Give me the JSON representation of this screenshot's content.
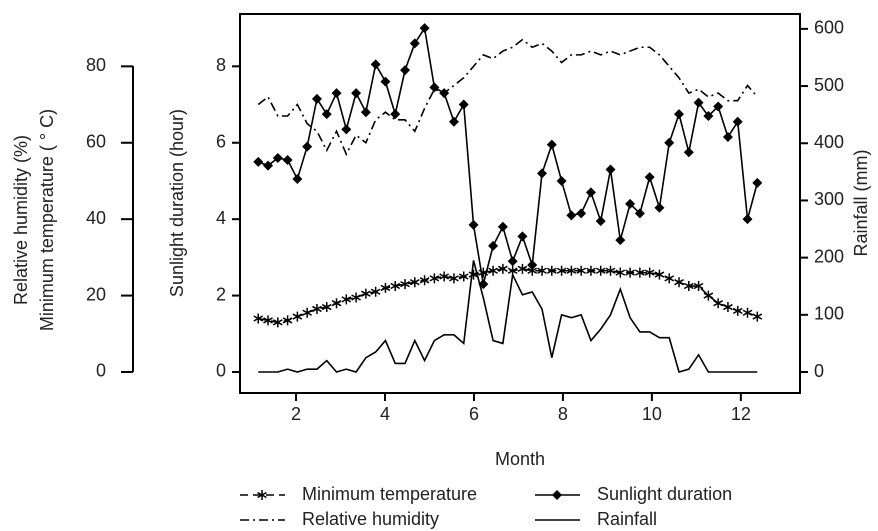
{
  "chart_data": {
    "type": "line",
    "x_label": "Month",
    "y_label": "Sunlight duration (hour)",
    "y2_label": "Rainfall (mm)",
    "y3_label": [
      "Relative humidity (%)",
      "Minimum temperature ( ° C)"
    ],
    "xlim": [
      0.74,
      13.33
    ],
    "xticks": [
      2,
      4,
      6,
      8,
      10,
      12
    ],
    "ylim": [
      -0.55,
      9.37
    ],
    "yticks": [
      0,
      2,
      4,
      6,
      8
    ],
    "y2lim": [
      -36.7,
      626
    ],
    "y2ticks": [
      0,
      100,
      200,
      300,
      400,
      500,
      600
    ],
    "y3lim": [
      -5.5,
      93.7
    ],
    "y3ticks": [
      0,
      20,
      40,
      60,
      80
    ],
    "x": [
      1.15,
      1.37,
      1.59,
      1.81,
      2.03,
      2.25,
      2.47,
      2.69,
      2.91,
      3.13,
      3.35,
      3.57,
      3.79,
      4.01,
      4.23,
      4.45,
      4.67,
      4.89,
      5.11,
      5.33,
      5.55,
      5.77,
      5.99,
      6.21,
      6.43,
      6.65,
      6.87,
      7.09,
      7.31,
      7.53,
      7.75,
      7.97,
      8.19,
      8.41,
      8.63,
      8.85,
      9.07,
      9.29,
      9.51,
      9.73,
      9.95,
      10.17,
      10.39,
      10.61,
      10.83,
      11.05,
      11.27,
      11.49,
      11.71,
      11.93,
      12.15,
      12.37
    ],
    "series": [
      {
        "name": "Minimum temperature",
        "axis": "y3",
        "color": "#000000",
        "dash": "8,5",
        "marker": "star",
        "values": [
          14,
          13.5,
          13,
          13.5,
          14.5,
          15.5,
          16.5,
          17,
          18,
          19,
          19.5,
          20.5,
          21,
          22,
          22.5,
          23,
          23.5,
          24,
          24.5,
          25,
          24.5,
          25,
          25.5,
          26,
          26.5,
          27,
          26.5,
          27,
          26.5,
          26.5,
          26.5,
          26.5,
          26.5,
          26.5,
          26.5,
          26.5,
          26.5,
          26,
          26,
          26,
          26,
          25.5,
          24.5,
          23.5,
          22.5,
          22.5,
          20,
          18,
          17,
          16,
          15.5,
          14.5
        ]
      },
      {
        "name": "Sunlight duration",
        "axis": "y",
        "color": "#000000",
        "dash": "none",
        "marker": "diamond",
        "values": [
          5.5,
          5.4,
          5.6,
          5.55,
          5.05,
          5.9,
          7.15,
          6.75,
          7.3,
          6.35,
          7.3,
          6.8,
          8.05,
          7.6,
          6.75,
          7.9,
          8.6,
          9.0,
          7.45,
          7.3,
          6.55,
          7.0,
          3.85,
          2.3,
          3.3,
          3.8,
          2.9,
          3.55,
          2.8,
          5.2,
          5.95,
          5.0,
          4.1,
          4.15,
          4.7,
          3.95,
          5.3,
          3.45,
          4.4,
          4.15,
          5.1,
          4.3,
          6.0,
          6.75,
          5.75,
          7.05,
          6.7,
          6.95,
          6.15,
          6.55,
          4.0,
          4.95
        ]
      },
      {
        "name": "Relative humidity",
        "axis": "y3",
        "color": "#000000",
        "dash": "9,4,2,4",
        "marker": "none",
        "values": [
          70,
          72,
          67,
          67,
          70,
          65,
          63,
          58,
          63,
          57,
          62,
          60,
          66,
          68,
          66,
          66,
          63,
          69,
          74,
          73,
          75,
          77,
          80,
          83,
          82,
          84,
          85,
          87,
          85,
          86,
          84,
          81,
          83,
          83,
          84,
          83,
          84,
          83,
          84,
          85,
          85,
          83,
          80,
          77,
          73,
          74,
          72,
          73,
          71,
          71,
          75,
          72
        ]
      },
      {
        "name": "Rainfall",
        "axis": "y2",
        "color": "#000000",
        "dash": "none",
        "marker": "none",
        "values": [
          0,
          0,
          0,
          5,
          0,
          5,
          5,
          20,
          0,
          5,
          0,
          25,
          35,
          55,
          15,
          15,
          55,
          20,
          55,
          65,
          65,
          50,
          195,
          130,
          55,
          50,
          170,
          135,
          140,
          110,
          25,
          100,
          95,
          100,
          55,
          75,
          100,
          145,
          95,
          70,
          70,
          60,
          60,
          0,
          5,
          30,
          0,
          0,
          0,
          0,
          0,
          0
        ]
      }
    ]
  }
}
